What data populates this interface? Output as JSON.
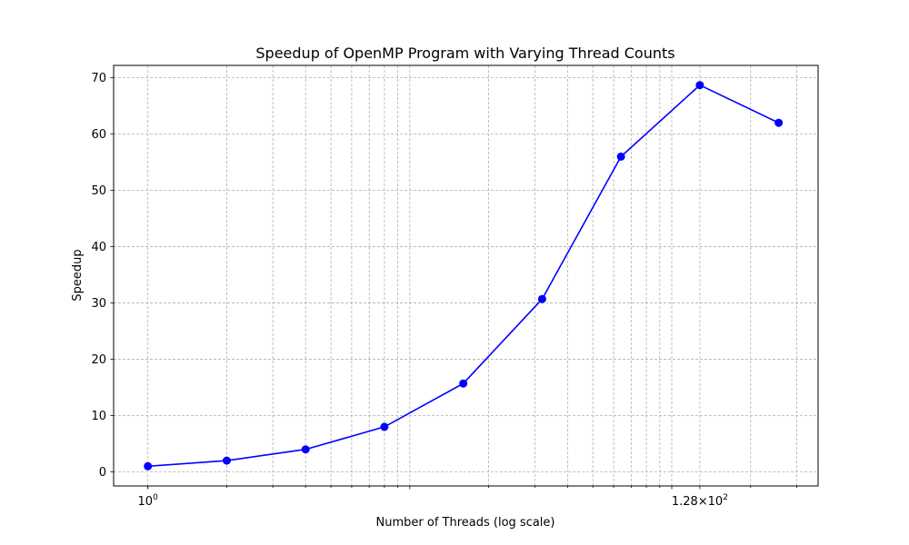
{
  "chart_data": {
    "type": "line",
    "title": "Speedup of OpenMP Program with Varying Thread Counts",
    "xlabel": "Number of Threads (log scale)",
    "ylabel": "Speedup",
    "x_scale": "log2",
    "xlim": [
      0.74,
      362
    ],
    "ylim": [
      -2.5,
      72.2
    ],
    "grid": true,
    "grid_minor": true,
    "series": [
      {
        "color": "#0000ff",
        "marker": "circle",
        "points": [
          {
            "x": 1,
            "y": 1
          },
          {
            "x": 2,
            "y": 2
          },
          {
            "x": 4,
            "y": 4
          },
          {
            "x": 8,
            "y": 8
          },
          {
            "x": 16,
            "y": 15.7
          },
          {
            "x": 32,
            "y": 30.7
          },
          {
            "x": 64,
            "y": 56
          },
          {
            "x": 128,
            "y": 68.7
          },
          {
            "x": 256,
            "y": 62
          }
        ]
      }
    ],
    "y_ticks": [
      0,
      10,
      20,
      30,
      40,
      50,
      60,
      70
    ],
    "x_ticks": [
      {
        "value": 1,
        "base": "10",
        "exponent": "0"
      },
      {
        "value": 128,
        "base": "1.28×10",
        "exponent": "2"
      }
    ]
  }
}
